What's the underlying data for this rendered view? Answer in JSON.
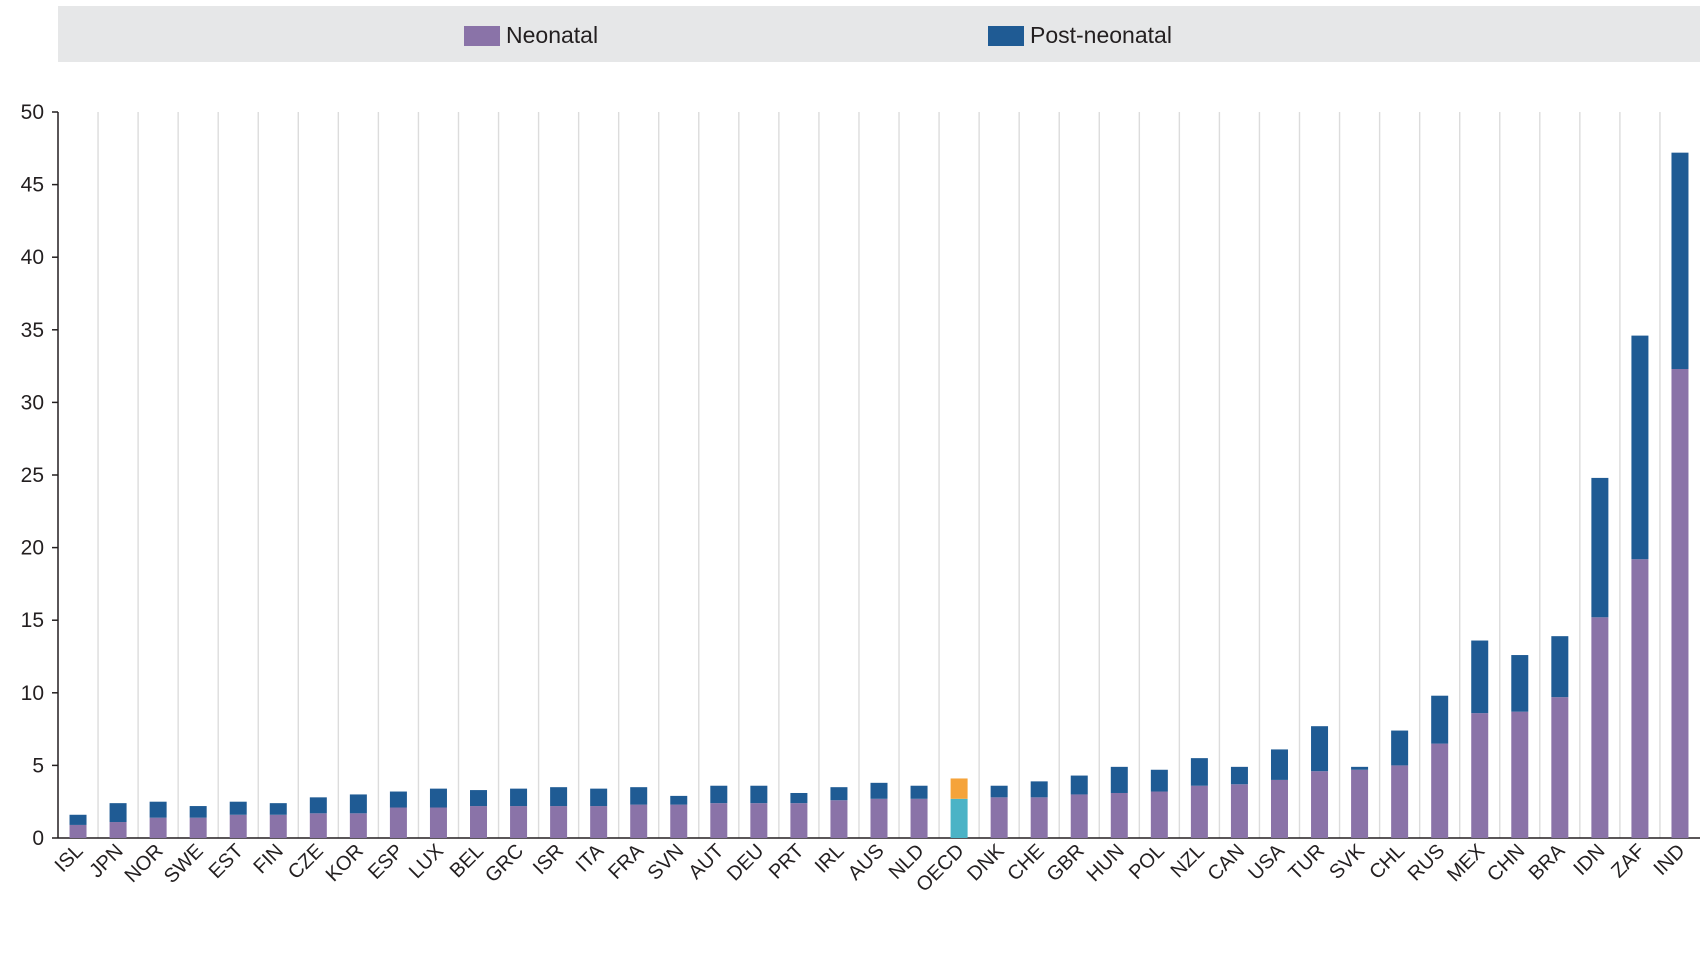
{
  "chart_data": {
    "type": "bar",
    "stacked": true,
    "legend": {
      "placement": "top",
      "items": [
        {
          "name": "Neonatal",
          "color": "#8a73a8"
        },
        {
          "name": "Post-neonatal",
          "color": "#1f5b94"
        }
      ]
    },
    "highlight": {
      "category": "OECD",
      "colors": {
        "Neonatal": "#4bb3c6",
        "Post-neonatal": "#f5a33a"
      }
    },
    "ylim": [
      0,
      50
    ],
    "yticks": [
      0,
      5,
      10,
      15,
      20,
      25,
      30,
      35,
      40,
      45,
      50
    ],
    "grid": "vertical",
    "categories": [
      "ISL",
      "JPN",
      "NOR",
      "SWE",
      "EST",
      "FIN",
      "CZE",
      "KOR",
      "ESP",
      "LUX",
      "BEL",
      "GRC",
      "ISR",
      "ITA",
      "FRA",
      "SVN",
      "AUT",
      "DEU",
      "PRT",
      "IRL",
      "AUS",
      "NLD",
      "OECD",
      "DNK",
      "CHE",
      "GBR",
      "HUN",
      "POL",
      "NZL",
      "CAN",
      "USA",
      "TUR",
      "SVK",
      "CHL",
      "RUS",
      "MEX",
      "CHN",
      "BRA",
      "IDN",
      "ZAF",
      "IND"
    ],
    "series": [
      {
        "name": "Neonatal",
        "values": [
          0.9,
          1.1,
          1.4,
          1.4,
          1.6,
          1.6,
          1.7,
          1.7,
          2.1,
          2.1,
          2.2,
          2.2,
          2.2,
          2.2,
          2.3,
          2.3,
          2.4,
          2.4,
          2.4,
          2.6,
          2.7,
          2.7,
          2.7,
          2.8,
          2.8,
          3.0,
          3.1,
          3.2,
          3.6,
          3.7,
          4.0,
          4.6,
          4.7,
          5.0,
          6.5,
          8.6,
          8.7,
          9.7,
          15.2,
          19.2,
          32.3
        ]
      },
      {
        "name": "Post-neonatal",
        "values": [
          0.7,
          1.3,
          1.1,
          0.8,
          0.9,
          0.8,
          1.1,
          1.3,
          1.1,
          1.3,
          1.1,
          1.2,
          1.3,
          1.2,
          1.2,
          0.6,
          1.2,
          1.2,
          0.7,
          0.9,
          1.1,
          0.9,
          1.4,
          0.8,
          1.1,
          1.3,
          1.8,
          1.5,
          1.9,
          1.2,
          2.1,
          3.1,
          0.2,
          2.4,
          3.3,
          5.0,
          3.9,
          4.2,
          9.6,
          15.4,
          14.9
        ]
      }
    ]
  }
}
